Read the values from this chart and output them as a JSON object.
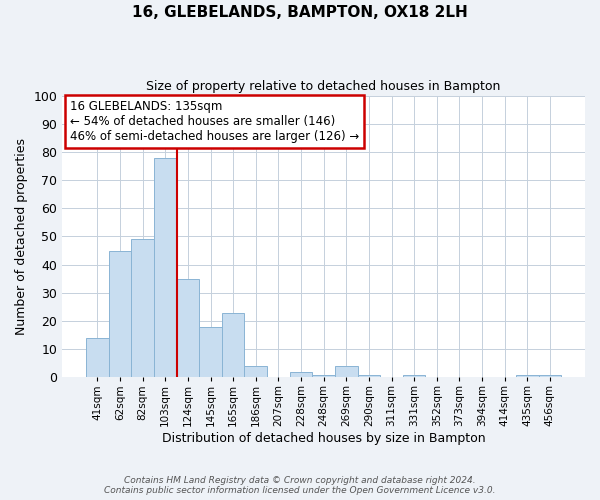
{
  "title": "16, GLEBELANDS, BAMPTON, OX18 2LH",
  "subtitle": "Size of property relative to detached houses in Bampton",
  "xlabel": "Distribution of detached houses by size in Bampton",
  "ylabel": "Number of detached properties",
  "bar_color": "#c8ddf0",
  "bar_edge_color": "#8ab4d4",
  "categories": [
    "41sqm",
    "62sqm",
    "82sqm",
    "103sqm",
    "124sqm",
    "145sqm",
    "165sqm",
    "186sqm",
    "207sqm",
    "228sqm",
    "248sqm",
    "269sqm",
    "290sqm",
    "311sqm",
    "331sqm",
    "352sqm",
    "373sqm",
    "394sqm",
    "414sqm",
    "435sqm",
    "456sqm"
  ],
  "values": [
    14,
    45,
    49,
    78,
    35,
    18,
    23,
    4,
    0,
    2,
    1,
    4,
    1,
    0,
    1,
    0,
    0,
    0,
    0,
    1,
    1
  ],
  "ylim": [
    0,
    100
  ],
  "vline_color": "#cc0000",
  "annotation_title": "16 GLEBELANDS: 135sqm",
  "annotation_line1": "← 54% of detached houses are smaller (146)",
  "annotation_line2": "46% of semi-detached houses are larger (126) →",
  "annotation_box_color": "#ffffff",
  "annotation_box_edge_color": "#cc0000",
  "footer1": "Contains HM Land Registry data © Crown copyright and database right 2024.",
  "footer2": "Contains public sector information licensed under the Open Government Licence v3.0.",
  "bg_color": "#eef2f7",
  "plot_bg_color": "#ffffff",
  "grid_color": "#c5d0dc"
}
